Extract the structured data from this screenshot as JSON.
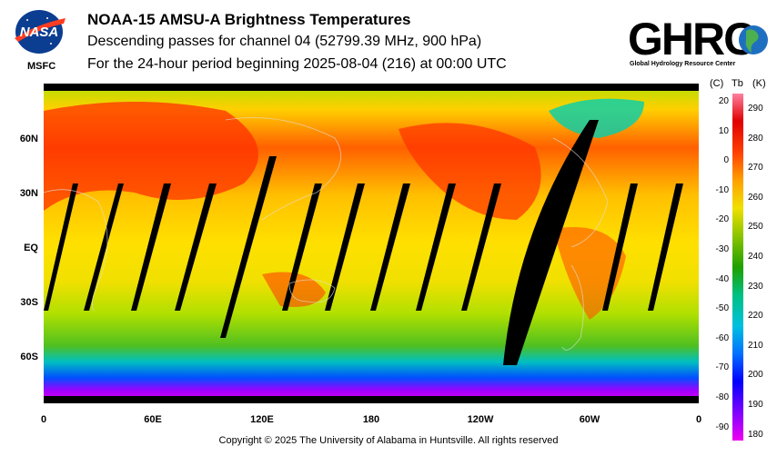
{
  "header": {
    "title": "NOAA-15 AMSU-A Brightness Temperatures",
    "subtitle_1": "Descending passes for channel 04 (52799.39 MHz, 900 hPa)",
    "subtitle_2": "For the 24-hour period beginning 2025-08-04 (216) at 00:00 UTC"
  },
  "logos": {
    "nasa_label": "MSFC",
    "nasa_word": "NASA",
    "ghrc_word": "GHRC",
    "ghrc_caption": "Global Hydrology Resource Center"
  },
  "map": {
    "lat_labels": [
      "60N",
      "30N",
      "EQ",
      "30S",
      "60S"
    ],
    "lon_labels": [
      "0",
      "60E",
      "120E",
      "180",
      "120W",
      "60W",
      "0"
    ]
  },
  "colorbar": {
    "header_c": "(C)",
    "header_tb": "Tb",
    "header_k": "(K)",
    "celsius_ticks": [
      "20",
      "10",
      "0",
      "-10",
      "-20",
      "-30",
      "-40",
      "-50",
      "-60",
      "-70",
      "-80",
      "-90"
    ],
    "kelvin_ticks": [
      "290",
      "280",
      "270",
      "260",
      "250",
      "240",
      "230",
      "220",
      "210",
      "200",
      "190",
      "180"
    ],
    "colors": [
      "#f000f0",
      "#8000ff",
      "#0000ff",
      "#0070ff",
      "#00c0e0",
      "#00c080",
      "#20a000",
      "#80c000",
      "#f0e000",
      "#ffa000",
      "#ff4000",
      "#e00000",
      "#ff80a0"
    ]
  },
  "footer": {
    "copyright": "Copyright © 2025 The University of Alabama in Huntsville.  All rights reserved"
  }
}
